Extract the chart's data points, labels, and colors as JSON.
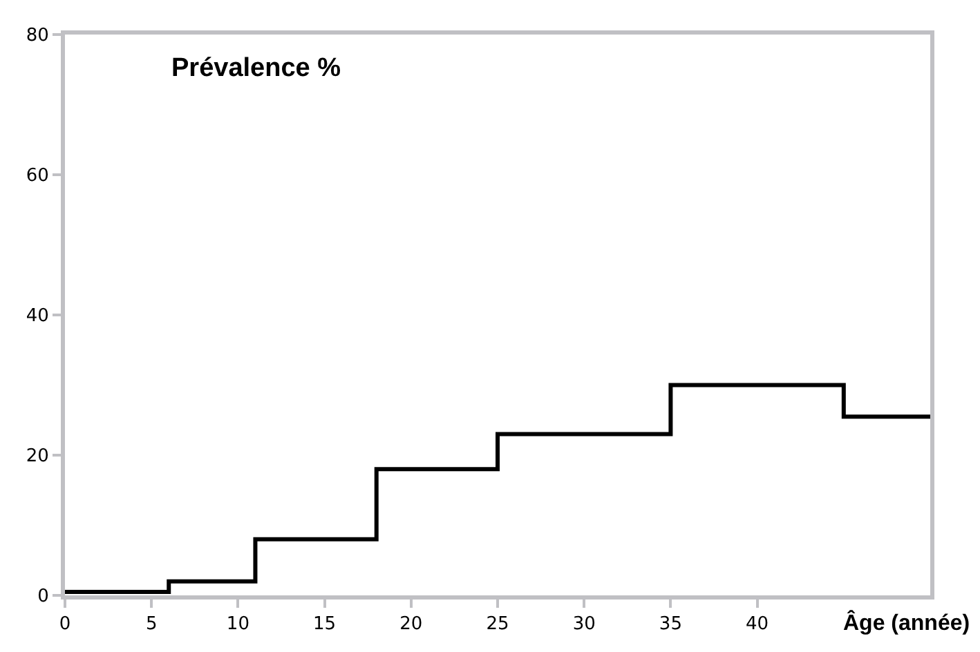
{
  "chart_data": {
    "type": "step",
    "ylabel": "Prévalence %",
    "xlabel": "Âge (année)",
    "x": [
      0,
      6,
      11,
      18,
      25,
      35,
      45,
      50
    ],
    "series": [
      {
        "color": "#000000",
        "values": [
          0.5,
          2,
          8,
          18,
          23,
          30,
          25.5,
          25.5
        ]
      }
    ],
    "xlim": [
      0,
      50
    ],
    "xticks": [
      0,
      5,
      10,
      15,
      20,
      25,
      30,
      35,
      40
    ],
    "ylim": [
      0,
      80
    ],
    "yticks": [
      0,
      20,
      40,
      60,
      80
    ],
    "marker": "none",
    "line_style": "solid"
  }
}
